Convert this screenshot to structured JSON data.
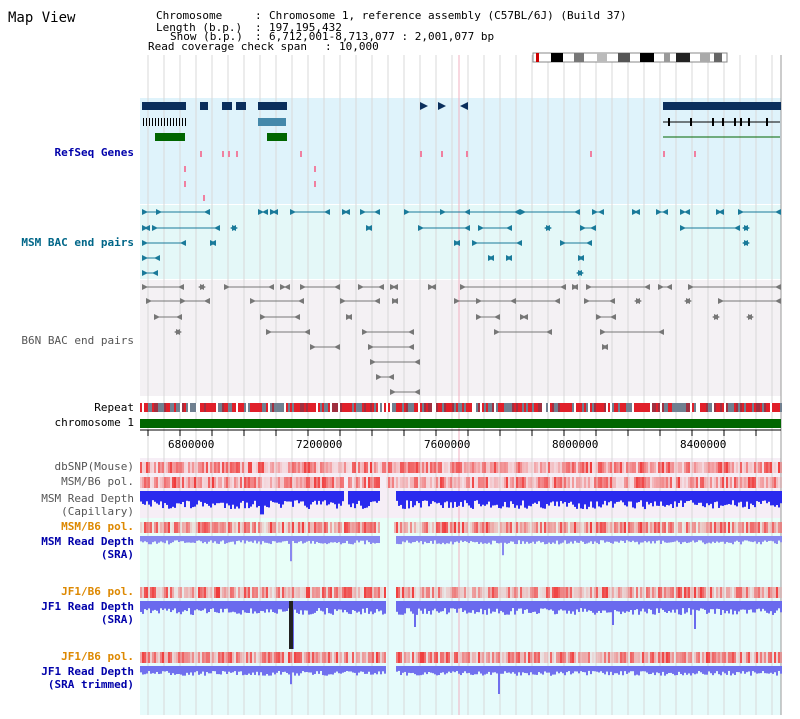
{
  "title": "Map View",
  "header": {
    "chromosome_key": "Chromosome",
    "chromosome_val": "Chromosome 1, reference assembly (C57BL/6J) (Build 37)",
    "length_key": "Length (b.p.)",
    "length_val": "197,195,432",
    "show_key": "Show (b.p.)",
    "show_val": "6,712,001-8,713,077 : 2,001,077 bp",
    "span_key": "Read coverage check span",
    "span_val": "10,000"
  },
  "tracks": {
    "refseq": "RefSeq Genes",
    "msm_bac": "MSM BAC end pairs",
    "b6n_bac": "B6N BAC end pairs",
    "repeat": "Repeat",
    "chromosome": "chromosome 1",
    "dbsnp": "dbSNP(Mouse)",
    "msm_b6_pol_1": "MSM/B6 pol.",
    "msm_read_depth_cap_1": "MSM Read Depth",
    "msm_read_depth_cap_2": "(Capillary)",
    "msm_b6_pol_2": "MSM/B6 pol.",
    "msm_read_depth_sra_1": "MSM Read Depth",
    "msm_read_depth_sra_2": "(SRA)",
    "jf1_b6_pol_1": "JF1/B6 pol.",
    "jf1_read_depth_sra_1": "JF1 Read Depth",
    "jf1_read_depth_sra_2": "(SRA)",
    "jf1_b6_pol_2": "JF1/B6 pol.",
    "jf1_read_depth_trim_1": "JF1 Read Depth",
    "jf1_read_depth_trim_2": "(SRA trimmed)"
  },
  "axis_ticks": [
    "6800000",
    "7200000",
    "7600000",
    "8000000",
    "8400000"
  ],
  "colors": {
    "refseq_bg": "#dff3fb",
    "bac_bg": "#e4f8f8",
    "b6n_bg": "#f4f1f4",
    "depth_bg": "#e8fff8",
    "gene_dark": "#0a2e5c",
    "gene_green": "#006600",
    "teal": "#1a7a9a",
    "chrom_green": "#006600",
    "depth_blue": "#3333ff",
    "pol_red": "#ff2020"
  }
}
